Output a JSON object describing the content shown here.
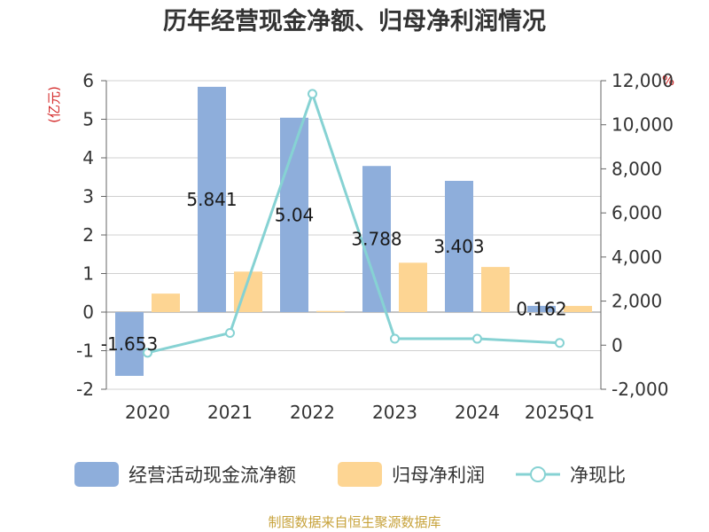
{
  "chart_data": {
    "type": "bar",
    "title": "历年经营现金净额、归母净利润情况",
    "left_unit": "(亿元)",
    "right_unit": "%",
    "categories": [
      "2020",
      "2021",
      "2022",
      "2023",
      "2024",
      "2025Q1"
    ],
    "series": [
      {
        "name": "经营活动现金流净额",
        "type": "bar",
        "axis": "left",
        "color": "#8eaedb",
        "values": [
          -1.653,
          5.841,
          5.04,
          3.788,
          3.403,
          0.162
        ],
        "labels": [
          "-1.653",
          "5.841",
          "5.04",
          "3.788",
          "3.403",
          "0.162"
        ]
      },
      {
        "name": "归母净利润",
        "type": "bar",
        "axis": "left",
        "color": "#fdd593",
        "values": [
          0.48,
          1.05,
          0.03,
          1.28,
          1.17,
          0.16
        ]
      },
      {
        "name": "净现比",
        "type": "line",
        "axis": "right",
        "color": "#86d2d3",
        "values": [
          -344,
          556,
          11400,
          293,
          291,
          103
        ]
      }
    ],
    "left_axis": {
      "min": -2,
      "max": 6,
      "ticks": [
        "-2",
        "-1",
        "0",
        "1",
        "2",
        "3",
        "4",
        "5",
        "6"
      ]
    },
    "right_axis": {
      "min": -2000,
      "max": 12000,
      "ticks": [
        "-2,000",
        "0",
        "2,000",
        "4,000",
        "6,000",
        "8,000",
        "10,000",
        "12,000"
      ]
    },
    "grid": true,
    "legend_position": "bottom"
  },
  "source": "制图数据来自恒生聚源数据库"
}
